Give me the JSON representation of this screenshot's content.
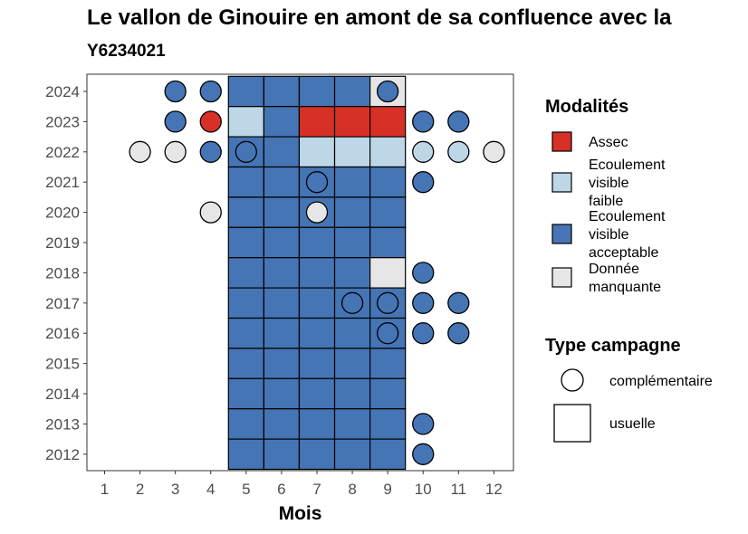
{
  "chart_data": {
    "type": "heatmap",
    "title": "Le vallon de Ginouire en amont de sa confluence avec la",
    "subtitle": "Y6234021",
    "xlabel": "Mois",
    "x_ticks": [
      "1",
      "2",
      "3",
      "4",
      "5",
      "6",
      "7",
      "8",
      "9",
      "10",
      "11",
      "12"
    ],
    "y_ticks": [
      "2024",
      "2023",
      "2022",
      "2021",
      "2020",
      "2019",
      "2018",
      "2017",
      "2016",
      "2015",
      "2014",
      "2013",
      "2012"
    ],
    "legend_modalites": {
      "title": "Modalités",
      "items": [
        {
          "key": "assec",
          "label_lines": [
            "Assec"
          ],
          "color": "#d73027"
        },
        {
          "key": "faible",
          "label_lines": [
            "Ecoulement",
            "visible",
            "faible"
          ],
          "color": "#bdd7e7"
        },
        {
          "key": "acceptable",
          "label_lines": [
            "Ecoulement",
            "visible",
            "acceptable"
          ],
          "color": "#4575b4"
        },
        {
          "key": "manquante",
          "label_lines": [
            "Donnée",
            "manquante"
          ],
          "color": "#e6e6e6"
        }
      ]
    },
    "legend_campagne": {
      "title": "Type campagne",
      "items": [
        {
          "key": "complementaire",
          "label": "complémentaire",
          "shape": "circle"
        },
        {
          "key": "usuelle",
          "label": "usuelle",
          "shape": "square"
        }
      ]
    },
    "usuelle": [
      {
        "year": 2024,
        "months": [
          5,
          6,
          7,
          8
        ],
        "status": "acceptable"
      },
      {
        "year": 2024,
        "months": [
          9
        ],
        "status": "manquante"
      },
      {
        "year": 2023,
        "months": [
          5
        ],
        "status": "faible"
      },
      {
        "year": 2023,
        "months": [
          6
        ],
        "status": "acceptable"
      },
      {
        "year": 2023,
        "months": [
          7,
          8,
          9
        ],
        "status": "assec"
      },
      {
        "year": 2022,
        "months": [
          5,
          6
        ],
        "status": "acceptable"
      },
      {
        "year": 2022,
        "months": [
          7,
          8,
          9
        ],
        "status": "faible"
      },
      {
        "year": 2021,
        "months": [
          5,
          6,
          7,
          8,
          9
        ],
        "status": "acceptable"
      },
      {
        "year": 2020,
        "months": [
          5,
          6,
          7,
          8,
          9
        ],
        "status": "acceptable"
      },
      {
        "year": 2019,
        "months": [
          5,
          6,
          7,
          8,
          9
        ],
        "status": "acceptable"
      },
      {
        "year": 2018,
        "months": [
          5,
          6,
          7,
          8
        ],
        "status": "acceptable"
      },
      {
        "year": 2018,
        "months": [
          9
        ],
        "status": "manquante"
      },
      {
        "year": 2017,
        "months": [
          5,
          6,
          7,
          8,
          9
        ],
        "status": "acceptable"
      },
      {
        "year": 2016,
        "months": [
          5,
          6,
          7,
          8,
          9
        ],
        "status": "acceptable"
      },
      {
        "year": 2015,
        "months": [
          5,
          6,
          7,
          8,
          9
        ],
        "status": "acceptable"
      },
      {
        "year": 2014,
        "months": [
          5,
          6,
          7,
          8,
          9
        ],
        "status": "acceptable"
      },
      {
        "year": 2013,
        "months": [
          5,
          6,
          7,
          8,
          9
        ],
        "status": "acceptable"
      },
      {
        "year": 2012,
        "months": [
          5,
          6,
          7,
          8,
          9
        ],
        "status": "acceptable"
      }
    ],
    "complementaire": [
      {
        "year": 2024,
        "month": 3,
        "status": "acceptable"
      },
      {
        "year": 2024,
        "month": 4,
        "status": "acceptable"
      },
      {
        "year": 2024,
        "month": 9,
        "status": "acceptable"
      },
      {
        "year": 2023,
        "month": 3,
        "status": "acceptable"
      },
      {
        "year": 2023,
        "month": 4,
        "status": "assec"
      },
      {
        "year": 2023,
        "month": 10,
        "status": "acceptable"
      },
      {
        "year": 2023,
        "month": 11,
        "status": "acceptable"
      },
      {
        "year": 2022,
        "month": 2,
        "status": "manquante"
      },
      {
        "year": 2022,
        "month": 3,
        "status": "manquante"
      },
      {
        "year": 2022,
        "month": 4,
        "status": "acceptable"
      },
      {
        "year": 2022,
        "month": 5,
        "status": "acceptable"
      },
      {
        "year": 2022,
        "month": 10,
        "status": "faible"
      },
      {
        "year": 2022,
        "month": 11,
        "status": "faible"
      },
      {
        "year": 2022,
        "month": 12,
        "status": "manquante"
      },
      {
        "year": 2021,
        "month": 7,
        "status": "acceptable"
      },
      {
        "year": 2021,
        "month": 10,
        "status": "acceptable"
      },
      {
        "year": 2020,
        "month": 4,
        "status": "manquante"
      },
      {
        "year": 2020,
        "month": 7,
        "status": "manquante"
      },
      {
        "year": 2018,
        "month": 10,
        "status": "acceptable"
      },
      {
        "year": 2017,
        "month": 8,
        "status": "acceptable"
      },
      {
        "year": 2017,
        "month": 9,
        "status": "acceptable"
      },
      {
        "year": 2017,
        "month": 10,
        "status": "acceptable"
      },
      {
        "year": 2017,
        "month": 11,
        "status": "acceptable"
      },
      {
        "year": 2016,
        "month": 9,
        "status": "acceptable"
      },
      {
        "year": 2016,
        "month": 10,
        "status": "acceptable"
      },
      {
        "year": 2016,
        "month": 11,
        "status": "acceptable"
      },
      {
        "year": 2013,
        "month": 10,
        "status": "acceptable"
      },
      {
        "year": 2012,
        "month": 10,
        "status": "acceptable"
      }
    ]
  }
}
